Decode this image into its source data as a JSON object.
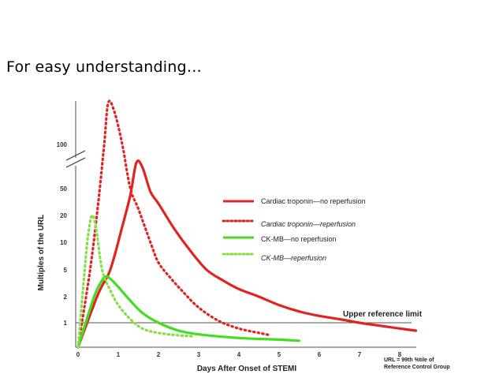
{
  "slide": {
    "heading": "For  easy  understanding…"
  },
  "chart_data": {
    "type": "line",
    "xlabel": "Days After Onset of STEMI",
    "ylabel": "Multiples of the URL",
    "x_ticks": [
      "0",
      "1",
      "2",
      "3",
      "4",
      "5",
      "6",
      "7",
      "8"
    ],
    "y_ticks": [
      "1",
      "2",
      "5",
      "10",
      "20",
      "50",
      "100"
    ],
    "y_scale": "log-like, broken axis above 50",
    "xlim": [
      0,
      8
    ],
    "reference_line": {
      "label": "Upper reference limit",
      "y": 1
    },
    "footnote": [
      "URL = 99th %tile of",
      "Reference Control Group"
    ],
    "legend_placement": "right",
    "series": [
      {
        "name": "Cardiac troponin—no reperfusion",
        "color": "#e02424",
        "dash": "solid",
        "points": [
          [
            0,
            0.5
          ],
          [
            0.5,
            2.2
          ],
          [
            0.8,
            5
          ],
          [
            1.1,
            15
          ],
          [
            1.3,
            40
          ],
          [
            1.45,
            75
          ],
          [
            1.6,
            70
          ],
          [
            1.8,
            45
          ],
          [
            2.0,
            30
          ],
          [
            2.4,
            14
          ],
          [
            2.8,
            8
          ],
          [
            3.2,
            5
          ],
          [
            3.6,
            3.5
          ],
          [
            4.0,
            2.6
          ],
          [
            4.5,
            2
          ],
          [
            5.0,
            1.6
          ],
          [
            5.5,
            1.35
          ],
          [
            6.0,
            1.2
          ],
          [
            6.5,
            1.1
          ],
          [
            7.0,
            1.0
          ],
          [
            7.5,
            0.92
          ],
          [
            8.0,
            0.85
          ],
          [
            8.4,
            0.8
          ]
        ]
      },
      {
        "name": "Cardiac troponin—reperfusion",
        "color": "#e02424",
        "dash": "dotted",
        "points": [
          [
            0,
            0.5
          ],
          [
            0.3,
            5
          ],
          [
            0.5,
            30
          ],
          [
            0.65,
            100
          ],
          [
            0.75,
            180
          ],
          [
            0.9,
            160
          ],
          [
            1.1,
            100
          ],
          [
            1.3,
            50
          ],
          [
            1.5,
            25
          ],
          [
            1.8,
            10
          ],
          [
            2.0,
            6
          ],
          [
            2.3,
            3.8
          ],
          [
            2.6,
            2.4
          ],
          [
            3.0,
            1.5
          ],
          [
            3.5,
            1.05
          ],
          [
            4.0,
            0.85
          ],
          [
            4.5,
            0.75
          ],
          [
            4.8,
            0.7
          ]
        ]
      },
      {
        "name": "CK-MB—no reperfusion",
        "color": "#44dd22",
        "dash": "solid",
        "points": [
          [
            0,
            0.5
          ],
          [
            0.4,
            2
          ],
          [
            0.6,
            3.5
          ],
          [
            0.7,
            4.0
          ],
          [
            0.8,
            3.7
          ],
          [
            1.0,
            2.8
          ],
          [
            1.3,
            1.8
          ],
          [
            1.6,
            1.3
          ],
          [
            2.0,
            1.0
          ],
          [
            2.5,
            0.8
          ],
          [
            3.0,
            0.72
          ],
          [
            4.0,
            0.65
          ],
          [
            5.0,
            0.62
          ],
          [
            5.5,
            0.6
          ]
        ]
      },
      {
        "name": "CK-MB—reperfusion",
        "color": "#88dd44",
        "dash": "dotted",
        "points": [
          [
            0,
            0.5
          ],
          [
            0.15,
            4
          ],
          [
            0.25,
            12
          ],
          [
            0.35,
            20
          ],
          [
            0.45,
            14
          ],
          [
            0.6,
            5
          ],
          [
            0.8,
            2.5
          ],
          [
            1.0,
            1.6
          ],
          [
            1.3,
            1.1
          ],
          [
            1.6,
            0.85
          ],
          [
            2.0,
            0.75
          ],
          [
            2.5,
            0.7
          ],
          [
            2.9,
            0.68
          ]
        ]
      }
    ]
  }
}
